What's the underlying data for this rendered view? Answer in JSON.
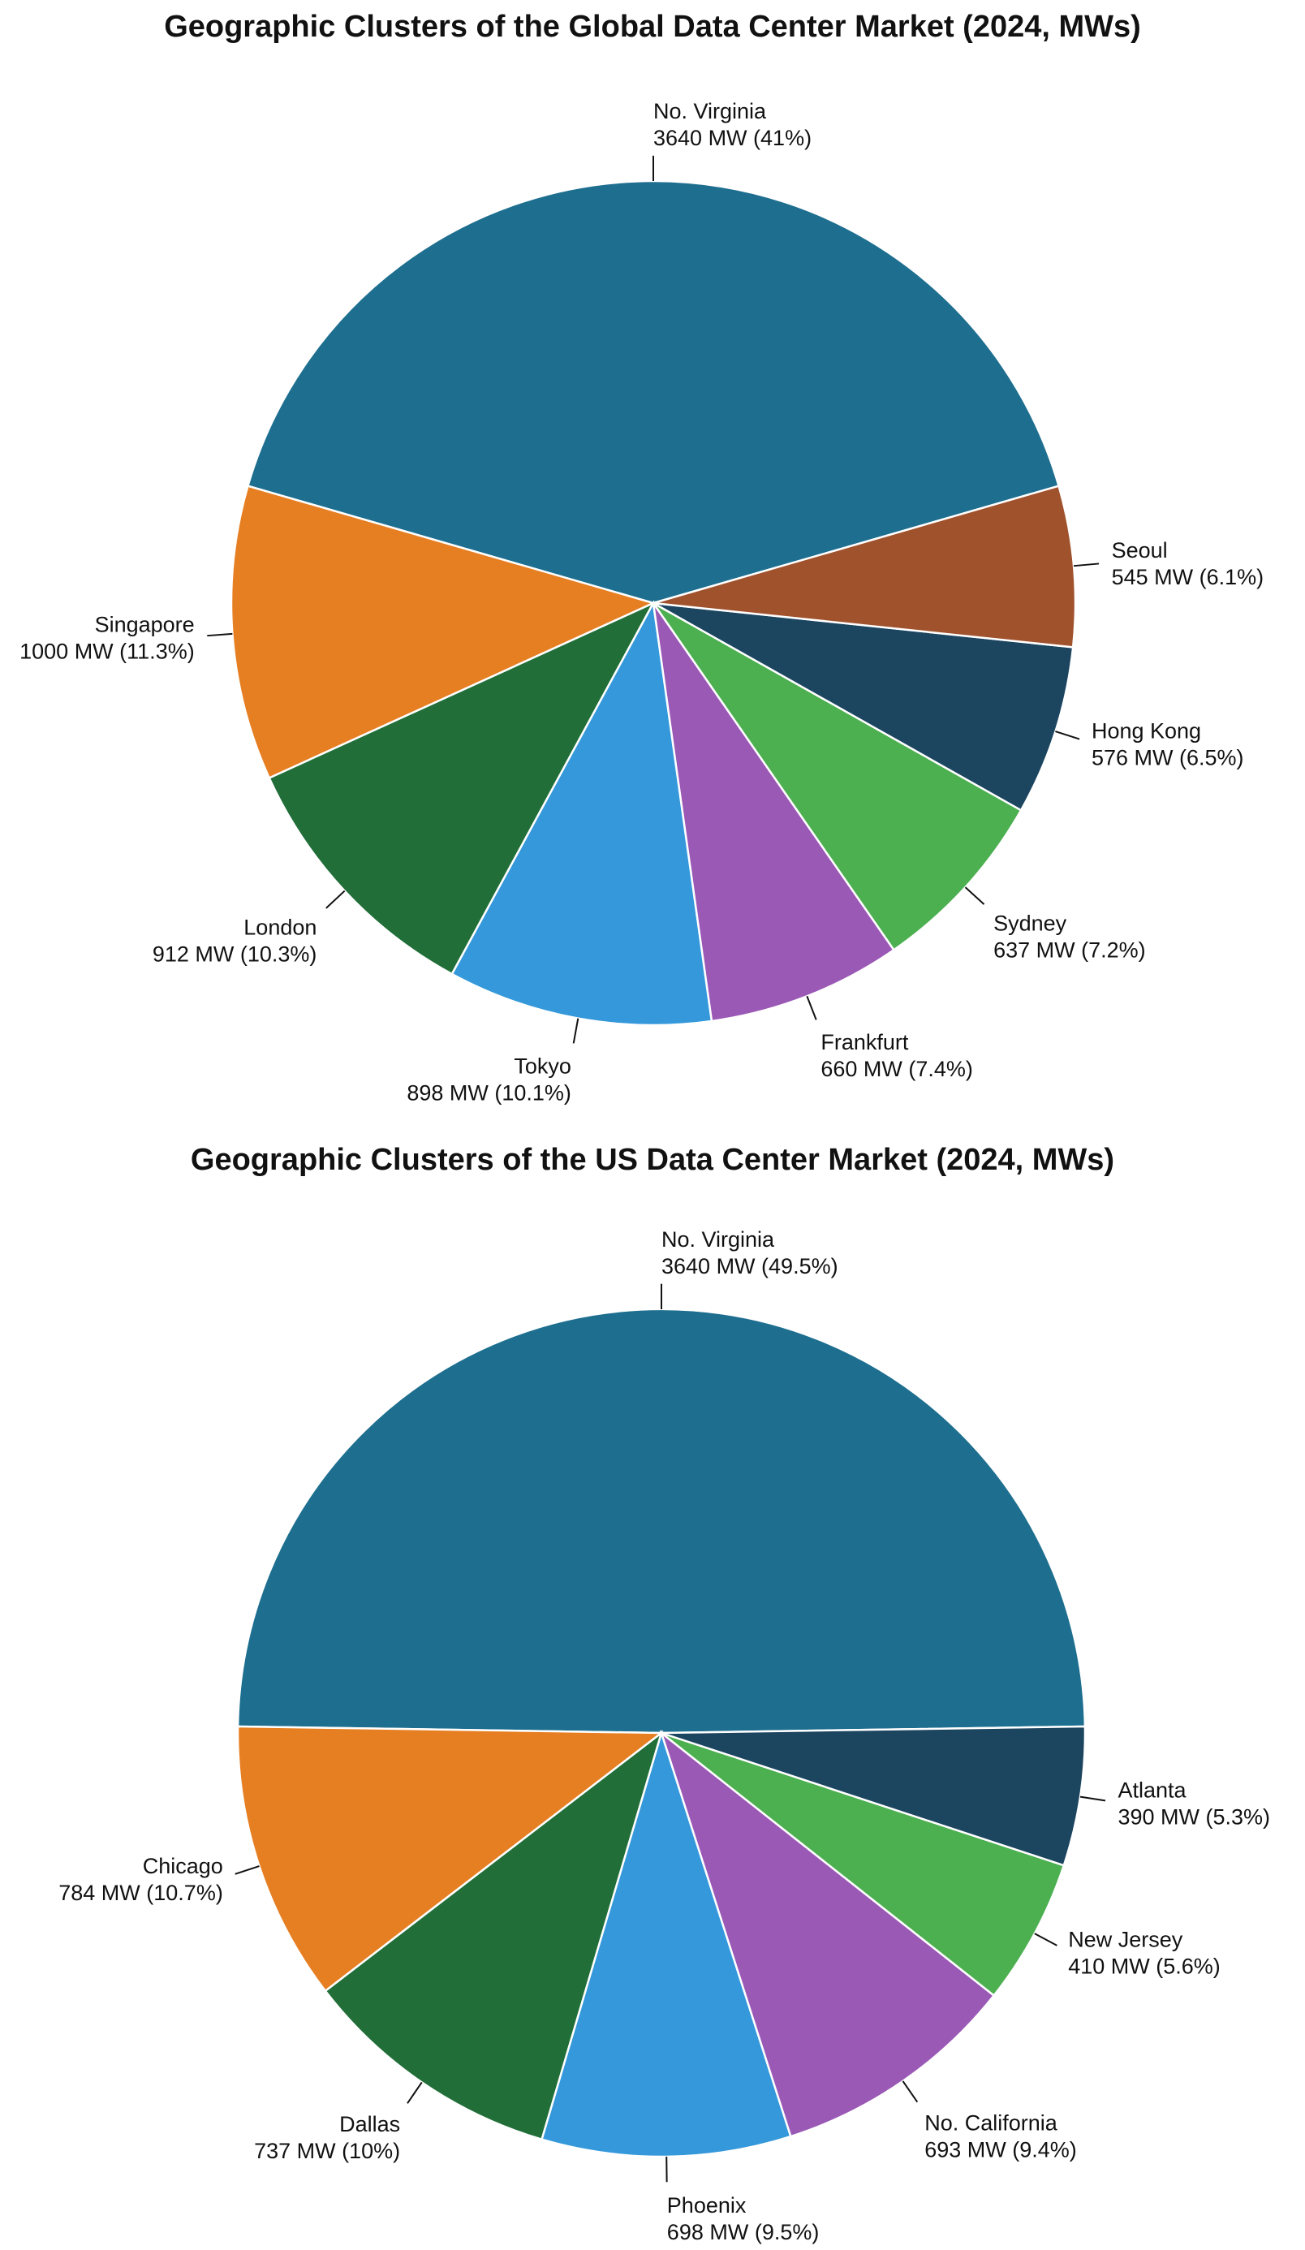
{
  "chart_data": [
    {
      "type": "pie",
      "title": "Geographic Clusters of the Global Data Center Market (2024, MWs)",
      "slices": [
        {
          "name": "No. Virginia",
          "value": 3640,
          "value_text": "3640 MW (41%)",
          "color": "#1d6e8f"
        },
        {
          "name": "Singapore",
          "value": 1000,
          "value_text": "1000 MW (11.3%)",
          "color": "#e67e22"
        },
        {
          "name": "London",
          "value": 912,
          "value_text": "912 MW (10.3%)",
          "color": "#216e39"
        },
        {
          "name": "Tokyo",
          "value": 898,
          "value_text": "898 MW (10.1%)",
          "color": "#3498db"
        },
        {
          "name": "Frankfurt",
          "value": 660,
          "value_text": "660 MW (7.4%)",
          "color": "#9b59b6"
        },
        {
          "name": "Sydney",
          "value": 637,
          "value_text": "637 MW (7.2%)",
          "color": "#4caf50"
        },
        {
          "name": "Hong Kong",
          "value": 576,
          "value_text": "576 MW (6.5%)",
          "color": "#1c4560"
        },
        {
          "name": "Seoul",
          "value": 545,
          "value_text": "545 MW (6.1%)",
          "color": "#a0522d"
        }
      ]
    },
    {
      "type": "pie",
      "title": "Geographic Clusters of the US Data Center Market (2024, MWs)",
      "slices": [
        {
          "name": "No. Virginia",
          "value": 3640,
          "value_text": "3640 MW (49.5%)",
          "color": "#1d6e8f"
        },
        {
          "name": "Chicago",
          "value": 784,
          "value_text": "784 MW (10.7%)",
          "color": "#e67e22"
        },
        {
          "name": "Dallas",
          "value": 737,
          "value_text": "737 MW (10%)",
          "color": "#216e39"
        },
        {
          "name": "Phoenix",
          "value": 698,
          "value_text": "698 MW (9.5%)",
          "color": "#3498db"
        },
        {
          "name": "No. California",
          "value": 693,
          "value_text": "693 MW (9.4%)",
          "color": "#9b59b6"
        },
        {
          "name": "New Jersey",
          "value": 410,
          "value_text": "410 MW (5.6%)",
          "color": "#4caf50"
        },
        {
          "name": "Atlanta",
          "value": 390,
          "value_text": "390 MW (5.3%)",
          "color": "#1c4560"
        }
      ]
    }
  ]
}
